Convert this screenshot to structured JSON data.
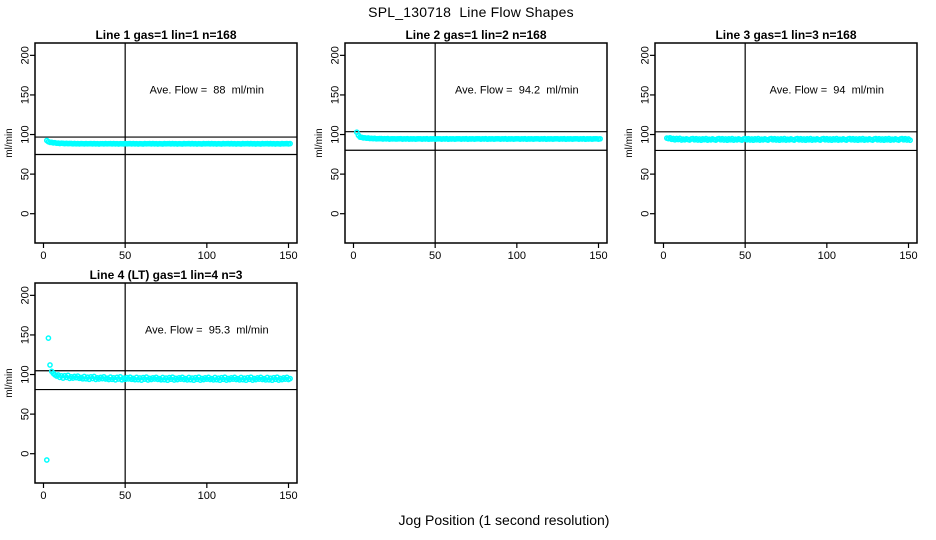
{
  "figure": {
    "title": "SPL_130718  Line Flow Shapes",
    "xlabel": "Jog Position (1 second resolution)",
    "background": "#ffffff",
    "axis_color": "#000000",
    "point_color": "#00ffff"
  },
  "chart_data": [
    {
      "type": "scatter",
      "title": "Line 1 gas=1 lin=1 n=168",
      "annotation": "Ave. Flow =  88  ml/min",
      "ave_flow_ml_min": 88,
      "ylabel": "ml/min",
      "xticks": [
        0,
        50,
        100,
        150
      ],
      "yticks": [
        0,
        50,
        100,
        150,
        200
      ],
      "xlim": [
        -5.2,
        155.2
      ],
      "ylim": [
        -37,
        215.6
      ],
      "grid": false,
      "vline_x": 50,
      "ref_lines": {
        "upper": 96.8,
        "lower": 74.8
      },
      "annotation_pos": {
        "x": 100,
        "y": 157
      },
      "series": {
        "outliers": [],
        "head": {
          "x0": 2,
          "y": [
            92.5,
            91.0,
            90.0
          ]
        },
        "band": {
          "x0": 5,
          "x1": 151,
          "base": 88.3,
          "amp": 1.5,
          "tau": 6,
          "noise": [
            0.2,
            -0.15,
            0.25,
            -0.1,
            0.1,
            -0.25,
            0.15,
            0.05,
            -0.2,
            0.2,
            -0.05,
            0.1
          ]
        }
      }
    },
    {
      "type": "scatter",
      "title": "Line 2 gas=1 lin=2 n=168",
      "annotation": "Ave. Flow =  94.2  ml/min",
      "ave_flow_ml_min": 94.2,
      "ylabel": "ml/min",
      "xticks": [
        0,
        50,
        100,
        150
      ],
      "yticks": [
        0,
        50,
        100,
        150,
        200
      ],
      "xlim": [
        -5.2,
        155.2
      ],
      "ylim": [
        -37,
        215.6
      ],
      "grid": false,
      "vline_x": 50,
      "ref_lines": {
        "upper": 103.6,
        "lower": 80.1
      },
      "annotation_pos": {
        "x": 100,
        "y": 157
      },
      "series": {
        "outliers": [],
        "head": {
          "x0": 2,
          "y": [
            103.0,
            99.0,
            96.8
          ]
        },
        "band": {
          "x0": 5,
          "x1": 151,
          "base": 94.4,
          "amp": 1.8,
          "tau": 6,
          "noise": [
            0.25,
            -0.2,
            0.15,
            -0.1,
            0.3,
            -0.25,
            0.1,
            -0.05,
            0.2,
            -0.15,
            0.05,
            0.15
          ]
        }
      }
    },
    {
      "type": "scatter",
      "title": "Line 3 gas=1 lin=3 n=168",
      "annotation": "Ave. Flow =  94  ml/min",
      "ave_flow_ml_min": 94,
      "ylabel": "ml/min",
      "xticks": [
        0,
        50,
        100,
        150
      ],
      "yticks": [
        0,
        50,
        100,
        150,
        200
      ],
      "xlim": [
        -5.2,
        155.2
      ],
      "ylim": [
        -37,
        215.6
      ],
      "grid": false,
      "vline_x": 50,
      "ref_lines": {
        "upper": 103.4,
        "lower": 79.9
      },
      "annotation_pos": {
        "x": 100,
        "y": 157
      },
      "series": {
        "outliers": [],
        "head": {
          "x0": 2,
          "y": [
            95.5,
            94.8
          ]
        },
        "band": {
          "x0": 4,
          "x1": 151,
          "base": 93.8,
          "amp": 1.2,
          "tau": 4,
          "noise": [
            0.9,
            -0.7,
            0.5,
            -1.0,
            0.8,
            -0.4,
            1.1,
            -0.9,
            0.3,
            -0.6,
            0.7,
            -0.2,
            -0.8,
            0.6,
            1.0,
            -0.5
          ]
        }
      }
    },
    {
      "type": "scatter",
      "title": "Line 4 (LT) gas=1 lin=4 n=3",
      "annotation": "Ave. Flow =  95.3  ml/min",
      "ave_flow_ml_min": 95.3,
      "ylabel": "ml/min",
      "xticks": [
        0,
        50,
        100,
        150
      ],
      "yticks": [
        0,
        50,
        100,
        150,
        200
      ],
      "xlim": [
        -5.2,
        155.2
      ],
      "ylim": [
        -37,
        215.6
      ],
      "grid": false,
      "vline_x": 50,
      "ref_lines": {
        "upper": 104.8,
        "lower": 81.0
      },
      "annotation_pos": {
        "x": 100,
        "y": 157
      },
      "series": {
        "outliers": [
          [
            2,
            -8
          ],
          [
            3,
            146
          ],
          [
            4,
            112
          ]
        ],
        "head": {
          "x0": 5,
          "y": [
            104.0,
            101.5,
            99.5,
            98.2
          ]
        },
        "band": {
          "x0": 9,
          "x1": 151,
          "base": 94.6,
          "amp": 3.2,
          "tau": 18,
          "noise": [
            1.6,
            -1.2,
            0.8,
            -1.8,
            1.4,
            -0.6,
            2.0,
            -1.6,
            0.4,
            -1.0,
            1.2,
            -0.4,
            1.8,
            -0.9,
            0.2,
            -1.4
          ]
        }
      }
    }
  ]
}
